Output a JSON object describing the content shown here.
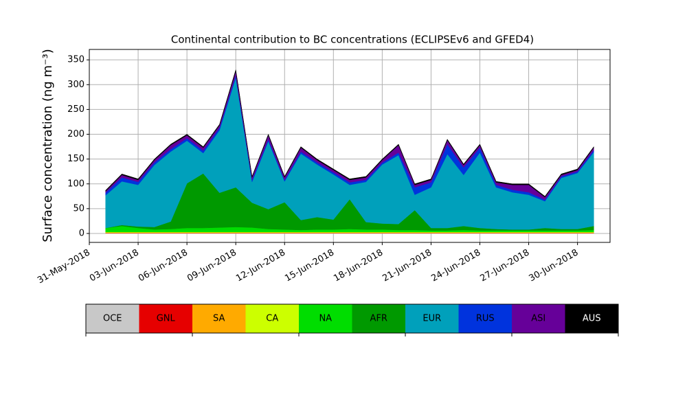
{
  "chart_data": {
    "type": "stacked_area",
    "title": "Continental contribution to BC concentrations (ECLIPSEv6 and GFED4)",
    "y_label": "Surface concentration (ng m⁻³)",
    "x": [
      "2018-06-01",
      "2018-06-02",
      "2018-06-03",
      "2018-06-04",
      "2018-06-05",
      "2018-06-06",
      "2018-06-07",
      "2018-06-08",
      "2018-06-09",
      "2018-06-10",
      "2018-06-11",
      "2018-06-12",
      "2018-06-13",
      "2018-06-14",
      "2018-06-15",
      "2018-06-16",
      "2018-06-17",
      "2018-06-18",
      "2018-06-19",
      "2018-06-20",
      "2018-06-21",
      "2018-06-22",
      "2018-06-23",
      "2018-06-24",
      "2018-06-25",
      "2018-06-26",
      "2018-06-27",
      "2018-06-28",
      "2018-06-29",
      "2018-06-30",
      "2018-07-01"
    ],
    "xlim": [
      "2018-05-31",
      "2018-07-02"
    ],
    "xticks": [
      {
        "value": "2018-05-31",
        "label": "31-May-2018"
      },
      {
        "value": "2018-06-03",
        "label": "03-Jun-2018"
      },
      {
        "value": "2018-06-06",
        "label": "06-Jun-2018"
      },
      {
        "value": "2018-06-09",
        "label": "09-Jun-2018"
      },
      {
        "value": "2018-06-12",
        "label": "12-Jun-2018"
      },
      {
        "value": "2018-06-15",
        "label": "15-Jun-2018"
      },
      {
        "value": "2018-06-18",
        "label": "18-Jun-2018"
      },
      {
        "value": "2018-06-21",
        "label": "21-Jun-2018"
      },
      {
        "value": "2018-06-24",
        "label": "24-Jun-2018"
      },
      {
        "value": "2018-06-27",
        "label": "27-Jun-2018"
      },
      {
        "value": "2018-06-30",
        "label": "30-Jun-2018"
      }
    ],
    "ylim": [
      -18,
      371
    ],
    "yticks": [
      0,
      50,
      100,
      150,
      200,
      250,
      300,
      350
    ],
    "grid": true,
    "series": [
      {
        "name": "OCE",
        "color": "#c8c8c8",
        "values": [
          0.5,
          0.5,
          0.5,
          0.5,
          0.5,
          0.5,
          0.5,
          0.5,
          0.5,
          0.5,
          0.5,
          0.5,
          0.5,
          0.5,
          0.5,
          0.5,
          0.5,
          0.5,
          0.5,
          0.5,
          0.5,
          0.5,
          0.5,
          0.5,
          0.5,
          0.5,
          0.5,
          0.5,
          0.5,
          0.5,
          0.5
        ]
      },
      {
        "name": "GNL",
        "color": "#e60000",
        "values": [
          0.5,
          0.5,
          0.5,
          0.5,
          0.5,
          0.5,
          0.5,
          0.5,
          0.5,
          0.5,
          0.5,
          0.5,
          0.5,
          0.5,
          0.5,
          0.5,
          0.5,
          0.5,
          0.5,
          0.5,
          0.5,
          0.5,
          0.5,
          0.5,
          0.5,
          0.5,
          0.5,
          0.5,
          0.5,
          0.5,
          0.5
        ]
      },
      {
        "name": "SA",
        "color": "#ffaa00",
        "values": [
          1,
          1,
          1,
          1,
          1,
          1,
          1,
          1,
          1,
          1,
          1,
          1,
          1,
          1,
          1,
          1,
          1,
          1,
          1,
          1,
          1,
          1,
          1,
          1,
          1,
          1,
          1,
          1,
          1,
          1,
          1
        ]
      },
      {
        "name": "CA",
        "color": "#ccff00",
        "values": [
          1,
          1,
          1,
          1,
          1,
          1,
          1,
          1,
          1,
          1,
          1,
          1,
          1,
          1,
          1,
          1,
          1,
          1,
          1,
          1,
          1,
          1,
          1,
          1,
          1,
          1,
          1,
          1,
          1,
          1,
          1
        ]
      },
      {
        "name": "NA",
        "color": "#00dd00",
        "values": [
          8,
          12,
          8,
          5,
          6,
          8,
          8,
          9,
          10,
          9,
          6,
          5,
          4,
          5,
          5,
          6,
          5,
          5,
          4,
          4,
          3,
          3,
          4,
          3,
          3,
          3,
          3,
          3,
          3,
          3,
          4
        ]
      },
      {
        "name": "AFR",
        "color": "#009900",
        "values": [
          0,
          2,
          3,
          5,
          15,
          90,
          110,
          70,
          80,
          50,
          40,
          55,
          20,
          25,
          20,
          60,
          15,
          12,
          12,
          40,
          5,
          5,
          8,
          5,
          3,
          2,
          2,
          5,
          3,
          3,
          8
        ]
      },
      {
        "name": "EUR",
        "color": "#00a0bb",
        "values": [
          66,
          88,
          84,
          125,
          141,
          86,
          41,
          126,
          221,
          42,
          137,
          42,
          134,
          106,
          91,
          29,
          81,
          119,
          139,
          31,
          82,
          149,
          103,
          152,
          84,
          75,
          70,
          54,
          103,
          113,
          149
        ]
      },
      {
        "name": "RUS",
        "color": "#0033dd",
        "values": [
          5,
          8,
          6,
          5,
          5,
          5,
          5,
          5,
          5,
          4,
          4,
          3,
          4,
          4,
          4,
          5,
          4,
          4,
          5,
          15,
          10,
          20,
          15,
          10,
          5,
          5,
          5,
          3,
          3,
          3,
          4
        ]
      },
      {
        "name": "ASI",
        "color": "#660099",
        "values": [
          3,
          5,
          4,
          5,
          8,
          6,
          6,
          5,
          8,
          5,
          8,
          5,
          8,
          5,
          5,
          5,
          5,
          5,
          15,
          5,
          5,
          8,
          5,
          5,
          5,
          10,
          15,
          5,
          3,
          3,
          5
        ]
      },
      {
        "name": "AUS",
        "color": "#000000",
        "values": [
          2,
          2,
          2,
          2,
          2,
          2,
          2,
          2,
          3,
          2,
          2,
          2,
          2,
          2,
          2,
          2,
          2,
          2,
          2,
          2,
          2,
          2,
          2,
          2,
          2,
          2,
          2,
          2,
          2,
          2,
          2
        ]
      }
    ]
  }
}
